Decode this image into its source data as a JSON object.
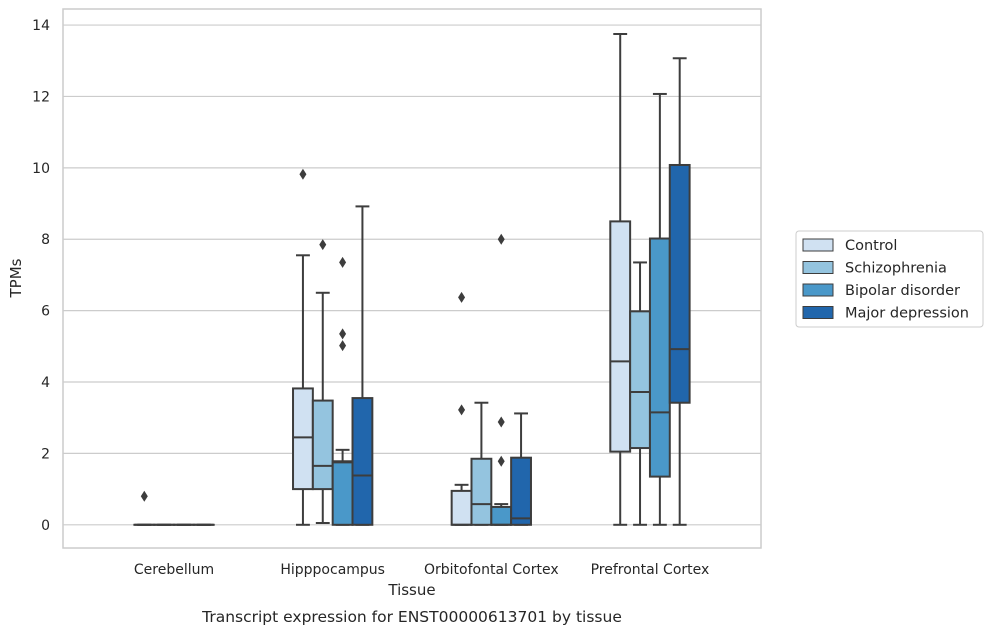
{
  "chart_data": {
    "type": "box",
    "caption": "Transcript expression for ENST00000613701 by tissue",
    "xlabel": "Tissue",
    "ylabel": "TPMs",
    "ylim": [
      -0.65,
      14.45
    ],
    "yticks": [
      0,
      2,
      4,
      6,
      8,
      10,
      12,
      14
    ],
    "grid": "horizontal",
    "legend_position": "right",
    "categories": [
      "Cerebellum",
      "Hipppocampus",
      "Orbitofontal Cortex",
      "Prefrontal Cortex"
    ],
    "series": [
      {
        "name": "Control",
        "color": "#d0e1f2",
        "boxes": [
          {
            "whislo": 0,
            "q1": 0,
            "med": 0,
            "q3": 0,
            "whishi": 0,
            "fliers": [
              0.8
            ]
          },
          {
            "whislo": 0,
            "q1": 1.0,
            "med": 2.45,
            "q3": 3.82,
            "whishi": 7.55,
            "fliers": [
              9.82
            ]
          },
          {
            "whislo": 0,
            "q1": 0,
            "med": 0,
            "q3": 0.95,
            "whishi": 1.12,
            "fliers": [
              3.22,
              6.37
            ]
          },
          {
            "whislo": 0,
            "q1": 2.05,
            "med": 4.58,
            "q3": 8.5,
            "whishi": 13.75,
            "fliers": []
          }
        ]
      },
      {
        "name": "Schizophrenia",
        "color": "#94c4df",
        "boxes": [
          {
            "whislo": 0,
            "q1": 0,
            "med": 0,
            "q3": 0,
            "whishi": 0,
            "fliers": []
          },
          {
            "whislo": 0.05,
            "q1": 1.0,
            "med": 1.65,
            "q3": 3.48,
            "whishi": 6.5,
            "fliers": [
              7.85
            ]
          },
          {
            "whislo": 0,
            "q1": 0,
            "med": 0.58,
            "q3": 1.85,
            "whishi": 3.42,
            "fliers": []
          },
          {
            "whislo": 0,
            "q1": 2.15,
            "med": 3.72,
            "q3": 5.98,
            "whishi": 7.35,
            "fliers": []
          }
        ]
      },
      {
        "name": "Bipolar disorder",
        "color": "#4a98c9",
        "boxes": [
          {
            "whislo": 0,
            "q1": 0,
            "med": 0,
            "q3": 0,
            "whishi": 0,
            "fliers": []
          },
          {
            "whislo": 0,
            "q1": 0,
            "med": 1.75,
            "q3": 1.78,
            "whishi": 2.1,
            "fliers": [
              5.02,
              5.35,
              7.35
            ]
          },
          {
            "whislo": 0,
            "q1": 0,
            "med": 0,
            "q3": 0.5,
            "whishi": 0.58,
            "fliers": [
              1.78,
              2.88,
              8.0
            ]
          },
          {
            "whislo": 0,
            "q1": 1.35,
            "med": 3.15,
            "q3": 8.02,
            "whishi": 12.07,
            "fliers": []
          }
        ]
      },
      {
        "name": "Major depression",
        "color": "#2166ac",
        "boxes": [
          {
            "whislo": 0,
            "q1": 0,
            "med": 0,
            "q3": 0,
            "whishi": 0,
            "fliers": []
          },
          {
            "whislo": 0,
            "q1": 0,
            "med": 1.38,
            "q3": 3.55,
            "whishi": 8.92,
            "fliers": []
          },
          {
            "whislo": 0,
            "q1": 0,
            "med": 0.18,
            "q3": 1.88,
            "whishi": 3.12,
            "fliers": []
          },
          {
            "whislo": 0,
            "q1": 3.42,
            "med": 4.92,
            "q3": 10.08,
            "whishi": 13.07,
            "fliers": []
          }
        ]
      }
    ]
  }
}
